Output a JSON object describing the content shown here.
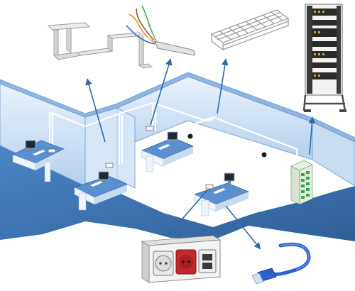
{
  "diagram": {
    "topic": "structured-cabling-office-network",
    "colors": {
      "floor": "#3f78b8",
      "floor_dark": "#2f5f98",
      "wall_light": "#dbe9f7",
      "wall_mid": "#b8d2ee",
      "wall_top": "#9bc0e6",
      "cable": "#ffffff",
      "arrow": "#2e6aa5",
      "desk_top": "#5a8fd0",
      "desk_side": "#eef4fb",
      "rack": "#3a3a3a",
      "module_green": "#3aa14a",
      "socket_red": "#c8282d",
      "patch_cord": "#2b63c8"
    },
    "callouts": [
      {
        "id": "cable-tray-bracket",
        "depicts": "wall-bracket"
      },
      {
        "id": "twisted-pair-cable",
        "depicts": "utp-cable-coil"
      },
      {
        "id": "wire-mesh-tray",
        "depicts": "mesh-cable-tray"
      },
      {
        "id": "server-rack",
        "depicts": "19-inch-rack-cabinet"
      },
      {
        "id": "power-data-outlet",
        "depicts": "wall-socket-block"
      },
      {
        "id": "patch-cord",
        "depicts": "rj45-patch-cable"
      }
    ],
    "workstations": [
      {
        "id": "ws-1"
      },
      {
        "id": "ws-2"
      },
      {
        "id": "ws-3"
      },
      {
        "id": "ws-4"
      }
    ]
  }
}
